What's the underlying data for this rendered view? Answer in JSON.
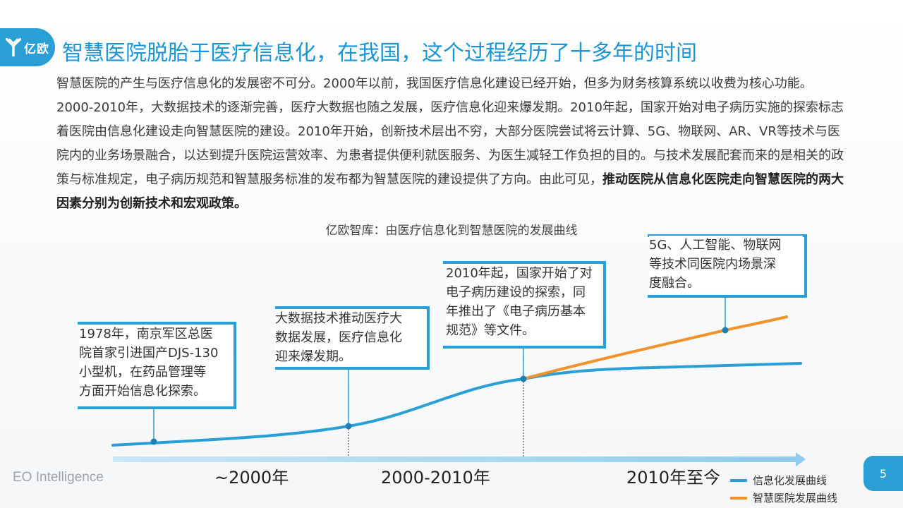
{
  "header": {
    "brand": "亿欧",
    "title": "智慧医院脱胎于医疗信息化，在我国，这个过程经历了十多年的时间"
  },
  "body": {
    "paragraph": "智慧医院的产生与医疗信息化的发展密不可分。2000年以前，我国医疗信息化建设已经开始，但多为财务核算系统以收费为核心功能。2000-2010年，大数据技术的逐渐完善，医疗大数据也随之发展，医疗信息化迎来爆发期。2010年起，国家开始对电子病历实施的探索标志着医院由信息化建设走向智慧医院的建设。2010年开始，创新技术层出不穷，大部分医院尝试将云计算、5G、物联网、AR、VR等技术与医院内的业务场景融合，以达到提升医院运营效率、为患者提供便利就医服务、为医生减轻工作负担的目的。与技术发展配套而来的是相关的政策与标准规定，电子病历规范和智慧服务标准的发布都为智慧医院的建设提供了方向。由此可见，",
    "paragraph_bold": "推动医院从信息化医院走向智慧医院的两大因素分别为创新技术和宏观政策。"
  },
  "chart_data": {
    "type": "line",
    "title": "亿欧智库：由医疗信息化到智慧医院的发展曲线",
    "periods": [
      "~2000年",
      "2000-2010年",
      "2010年至今"
    ],
    "series": [
      {
        "name": "信息化发展曲线",
        "color": "#2a9fd6"
      },
      {
        "name": "智慧医院发展曲线",
        "color": "#f0932b"
      }
    ],
    "annotations": [
      "1978年，南京军区总医\n院首家引进国产DJS-130\n小型机，在药品管理等\n方面开始信息化探索。",
      "大数据技术推动医疗大\n数据发展，医疗信息化\n迎来爆发期。",
      "2010年起，国家开始了对\n电子病历建设的探索，同\n年推出了《电子病历基本\n规范》等文件。",
      "5G、人工智能、物联网\n等技术同医院内场景深\n度融合。"
    ]
  },
  "footer": {
    "brand": "EO Intelligence",
    "page": "5"
  },
  "colors": {
    "accent": "#2a9fd6",
    "orange": "#f0932b",
    "title_blue": "#1a95d6"
  }
}
